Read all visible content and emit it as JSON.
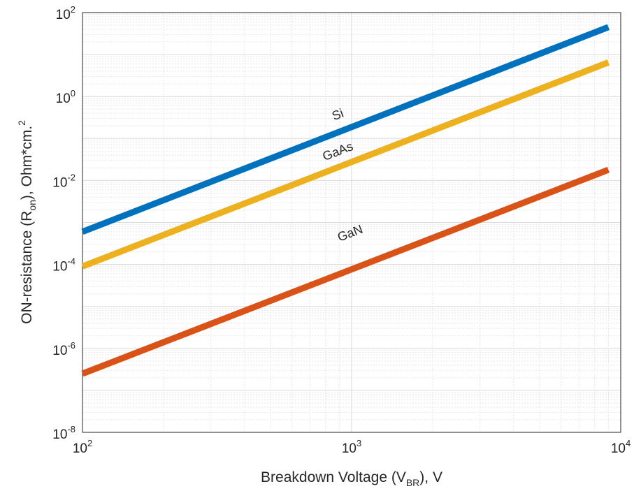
{
  "chart_data": {
    "type": "line",
    "xscale": "log",
    "yscale": "log",
    "xlim": [
      100,
      10000
    ],
    "ylim": [
      1e-08,
      100
    ],
    "grid": true,
    "minor_grid": true,
    "xlabel": {
      "main": "Breakdown Voltage (V",
      "sub": "BR",
      "tail": "), V"
    },
    "ylabel": {
      "main": "ON-resistance (R",
      "sub": "on",
      "tail": "), Ohm*cm.",
      "sup": "2"
    },
    "x_ticks": [
      {
        "value": 100,
        "base": "10",
        "exp": "2"
      },
      {
        "value": 1000,
        "base": "10",
        "exp": "3"
      },
      {
        "value": 10000,
        "base": "10",
        "exp": "4"
      }
    ],
    "y_ticks": [
      {
        "value": 100,
        "base": "10",
        "exp": "2"
      },
      {
        "value": 1,
        "base": "10",
        "exp": "0"
      },
      {
        "value": 0.01,
        "base": "10",
        "exp": "-2"
      },
      {
        "value": 0.0001,
        "base": "10",
        "exp": "-4"
      },
      {
        "value": 1e-06,
        "base": "10",
        "exp": "-6"
      },
      {
        "value": 1e-08,
        "base": "10",
        "exp": "-8"
      }
    ],
    "series": [
      {
        "name": "Si",
        "color": "#0072BD",
        "x": [
          100,
          9000
        ],
        "y": [
          0.0006,
          45
        ]
      },
      {
        "name": "GaAs",
        "color": "#EDB120",
        "x": [
          100,
          9000
        ],
        "y": [
          9e-05,
          6.5
        ]
      },
      {
        "name": "GaN",
        "color": "#D95319",
        "x": [
          100,
          9000
        ],
        "y": [
          2.5e-07,
          0.018
        ]
      }
    ],
    "annotations": [
      {
        "text": "Si",
        "x": 900,
        "y": 0.3,
        "series": "Si"
      },
      {
        "text": "GaAs",
        "x": 900,
        "y": 0.04,
        "series": "GaAs"
      },
      {
        "text": "GaN",
        "x": 1000,
        "y": 0.00045,
        "series": "GaN"
      }
    ]
  }
}
